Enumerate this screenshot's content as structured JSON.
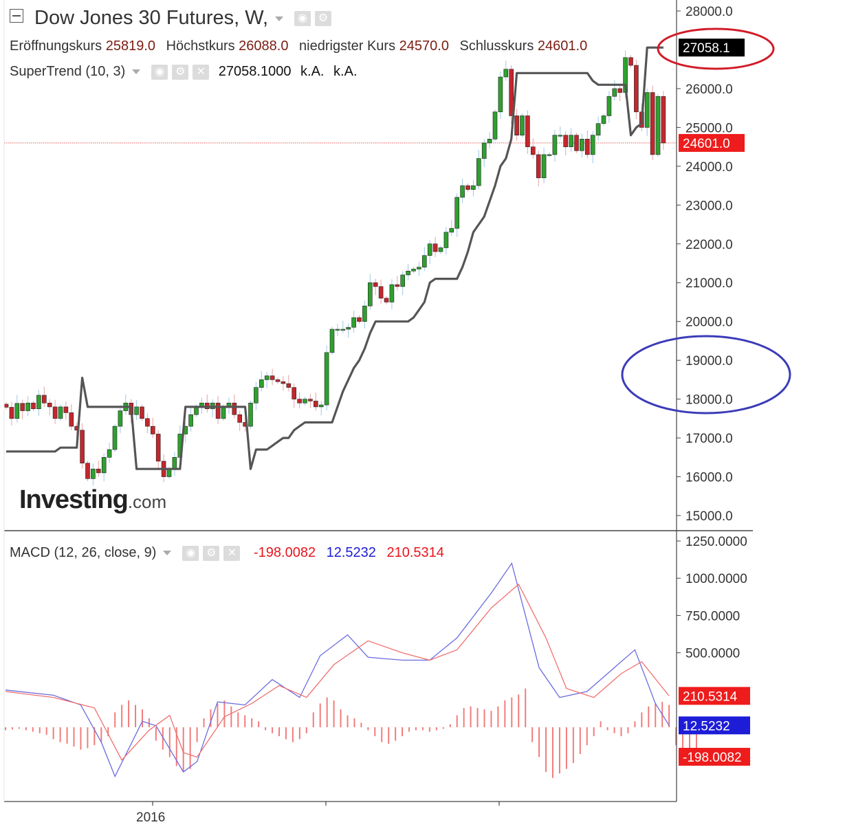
{
  "header": {
    "title": "Dow Jones 30 Futures, W,",
    "ohlc": [
      {
        "label": "Eröffnungskurs",
        "value": "25819.0"
      },
      {
        "label": "Höchstkurs",
        "value": "26088.0"
      },
      {
        "label": "niedrigster Kurs",
        "value": "24570.0"
      },
      {
        "label": "Schlusskurs",
        "value": "24601.0"
      }
    ],
    "supertrend": {
      "label": "SuperTrend (10, 3)",
      "value": "27058.1000",
      "na1": "k.A.",
      "na2": "k.A."
    },
    "macd": {
      "label": "MACD (12, 26, close, 9)",
      "v1": "-198.0082",
      "v2": "12.5232",
      "v3": "210.5314"
    }
  },
  "logo": {
    "brand": "Investing",
    "suffix": ".com"
  },
  "colors": {
    "up": "#2ea02e",
    "down": "#c2272d",
    "supertrend": "#555555",
    "macd_line": "#6b6bdf",
    "signal_line": "#f07070",
    "histogram": "#f27b7b",
    "red_annotation": "#d21b28",
    "blue_annotation": "#3b3bb8"
  },
  "chart_data": [
    {
      "type": "candlestick",
      "title": "Dow Jones 30 Futures, W,",
      "y_axis": {
        "ylim": [
          14700,
          28300
        ],
        "ticks": [
          "28000.0",
          "26000.0",
          "25000.0",
          "24000.0",
          "23000.0",
          "22000.0",
          "21000.0",
          "20000.0",
          "19000.0",
          "18000.0",
          "17000.0",
          "16000.0",
          "15000.0"
        ]
      },
      "x_axis": {
        "labels": [
          "2016"
        ]
      },
      "price_labels": [
        {
          "value": 27058.1,
          "text": "27058.1",
          "style": "black"
        },
        {
          "value": 24601.0,
          "text": "24601.0",
          "style": "red"
        }
      ],
      "last_price_line": 24601.0,
      "close_series": [
        17790,
        17500,
        17890,
        17700,
        17900,
        17750,
        18100,
        17900,
        17800,
        17500,
        17800,
        17650,
        17300,
        17200,
        16350,
        15950,
        16200,
        16100,
        16500,
        16700,
        17300,
        17700,
        17900,
        17600,
        17800,
        17500,
        17300,
        17100,
        16400,
        16000,
        16200,
        16500,
        17100,
        17300,
        17600,
        17800,
        17900,
        17750,
        17900,
        17500,
        17800,
        17900,
        17600,
        17400,
        17300,
        17900,
        18300,
        18500,
        18600,
        18500,
        18450,
        18400,
        18300,
        18000,
        17900,
        18000,
        17950,
        17800,
        17850,
        19200,
        19800,
        19800,
        19800,
        19850,
        20100,
        20000,
        20400,
        21000,
        20900,
        20600,
        20500,
        20950,
        20900,
        21200,
        21300,
        21350,
        21400,
        21700,
        22000,
        21800,
        21900,
        22300,
        22400,
        23200,
        23500,
        23400,
        23500,
        24200,
        24600,
        24700,
        25400,
        26300,
        26500,
        25300,
        24800,
        25300,
        24500,
        24300,
        23700,
        24300,
        24300,
        24800,
        24800,
        24500,
        24800,
        24400,
        24700,
        24300,
        24800,
        25100,
        25300,
        25800,
        26000,
        25900,
        26800,
        26600,
        25400,
        25000,
        25900,
        24300,
        25800,
        24600
      ],
      "supertrend_series": [
        16650,
        16650,
        16650,
        16650,
        16650,
        16650,
        16650,
        16650,
        16650,
        16650,
        16750,
        16750,
        16750,
        16750,
        18550,
        17800,
        17800,
        17800,
        17800,
        17800,
        17800,
        17800,
        17800,
        17800,
        16200,
        16200,
        16200,
        16200,
        16200,
        16200,
        16200,
        16200,
        16200,
        17800,
        17800,
        17800,
        17800,
        17800,
        17800,
        17800,
        17800,
        17800,
        17800,
        17800,
        17800,
        16200,
        16700,
        16700,
        16700,
        16800,
        16900,
        17000,
        17000,
        17200,
        17300,
        17400,
        17400,
        17400,
        17400,
        17400,
        17400,
        17800,
        18200,
        18500,
        18800,
        19000,
        19300,
        19700,
        20000,
        20000,
        20000,
        20000,
        20000,
        20000,
        20000,
        20100,
        20300,
        20500,
        21000,
        21100,
        21100,
        21100,
        21100,
        21100,
        21400,
        21800,
        22300,
        22500,
        22700,
        23100,
        23500,
        24000,
        24200,
        24700,
        26400,
        26400,
        26400,
        26400,
        26400,
        26400,
        26400,
        26400,
        26400,
        26400,
        26400,
        26400,
        26400,
        26400,
        26200,
        26100,
        26100,
        26100,
        26100,
        26100,
        26100,
        24800,
        25000,
        25100,
        27058,
        27058,
        27058,
        27058
      ]
    },
    {
      "type": "line",
      "title": "MACD (12, 26, close, 9)",
      "y_axis": {
        "ylim": [
          -500,
          1290
        ],
        "ticks": [
          "1250.0000",
          "1000.0000",
          "750.0000",
          "500.0000"
        ]
      },
      "series": [
        {
          "name": "MACD",
          "points": [
            [
              0,
              250
            ],
            [
              7,
              215
            ],
            [
              11,
              150
            ],
            [
              14,
              -100
            ],
            [
              16,
              -330
            ],
            [
              20,
              40
            ],
            [
              22,
              10
            ],
            [
              26,
              -300
            ],
            [
              28,
              -230
            ],
            [
              31,
              170
            ],
            [
              35,
              150
            ],
            [
              39,
              320
            ],
            [
              43,
              200
            ],
            [
              46,
              480
            ],
            [
              50,
              620
            ],
            [
              53,
              470
            ],
            [
              58,
              450
            ],
            [
              62,
              450
            ],
            [
              66,
              600
            ],
            [
              71,
              900
            ],
            [
              74,
              1100
            ],
            [
              78,
              400
            ],
            [
              81,
              200
            ],
            [
              85,
              240
            ],
            [
              89,
              400
            ],
            [
              92,
              520
            ],
            [
              95,
              160
            ],
            [
              97,
              12.5
            ]
          ]
        },
        {
          "name": "Signal",
          "points": [
            [
              0,
              240
            ],
            [
              7,
              200
            ],
            [
              13,
              130
            ],
            [
              17,
              -220
            ],
            [
              21,
              -20
            ],
            [
              24,
              80
            ],
            [
              26,
              -170
            ],
            [
              28,
              -200
            ],
            [
              32,
              70
            ],
            [
              36,
              160
            ],
            [
              40,
              280
            ],
            [
              44,
              200
            ],
            [
              48,
              420
            ],
            [
              53,
              580
            ],
            [
              58,
              500
            ],
            [
              62,
              450
            ],
            [
              66,
              520
            ],
            [
              71,
              800
            ],
            [
              75,
              960
            ],
            [
              79,
              600
            ],
            [
              82,
              260
            ],
            [
              86,
              200
            ],
            [
              90,
              360
            ],
            [
              93,
              440
            ],
            [
              97,
              210.5
            ]
          ]
        }
      ],
      "price_labels": [
        {
          "value": 210.5314,
          "text": "210.5314",
          "style": "red"
        },
        {
          "value": 12.5232,
          "text": "12.5232",
          "style": "blue"
        },
        {
          "value": -198.0082,
          "text": "-198.0082",
          "style": "red"
        }
      ],
      "histogram": [
        -20,
        -15,
        -10,
        -20,
        -30,
        -40,
        -50,
        -80,
        -100,
        -110,
        -130,
        -150,
        -140,
        -120,
        -100,
        -60,
        100,
        150,
        180,
        150,
        120,
        60,
        -90,
        -150,
        -200,
        -260,
        -300,
        -280,
        -100,
        60,
        120,
        160,
        180,
        140,
        100,
        80,
        60,
        40,
        -20,
        -40,
        -60,
        -80,
        -100,
        -80,
        -40,
        100,
        160,
        200,
        180,
        120,
        80,
        60,
        30,
        -20,
        -60,
        -100,
        -110,
        -90,
        -60,
        -30,
        -20,
        -20,
        -30,
        -20,
        -10,
        20,
        80,
        130,
        140,
        130,
        120,
        110,
        140,
        180,
        200,
        220,
        260,
        -100,
        -200,
        -300,
        -340,
        -310,
        -280,
        -240,
        -180,
        -120,
        -60,
        40,
        -20,
        -40,
        -60,
        -40,
        40,
        100,
        140,
        160,
        170,
        150,
        -120,
        -180,
        -200,
        -198
      ]
    }
  ]
}
